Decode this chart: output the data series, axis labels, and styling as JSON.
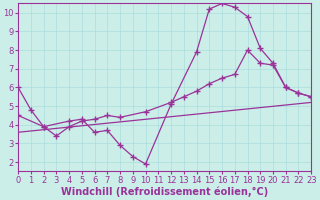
{
  "xlabel": "Windchill (Refroidissement éolien,°C)",
  "bg_color": "#cceee8",
  "line_color": "#993399",
  "grid_color": "#aadddd",
  "xlim": [
    0,
    23
  ],
  "ylim": [
    1.5,
    10.5
  ],
  "xticks": [
    0,
    1,
    2,
    3,
    4,
    5,
    6,
    7,
    8,
    9,
    10,
    11,
    12,
    13,
    14,
    15,
    16,
    17,
    18,
    19,
    20,
    21,
    22,
    23
  ],
  "yticks": [
    2,
    3,
    4,
    5,
    6,
    7,
    8,
    9,
    10
  ],
  "line1_x": [
    0,
    1,
    2,
    4,
    5,
    6,
    7,
    8,
    9,
    10,
    12,
    14,
    15,
    16,
    17,
    18,
    19,
    20,
    21,
    22,
    23
  ],
  "line1_y": [
    6.0,
    4.8,
    3.9,
    4.2,
    4.3,
    3.6,
    3.7,
    2.9,
    2.3,
    1.9,
    5.1,
    7.9,
    10.2,
    10.5,
    10.3,
    9.8,
    8.1,
    7.3,
    6.0,
    5.7,
    5.5
  ],
  "line2_x": [
    0,
    2,
    3,
    4,
    5,
    6,
    7,
    8,
    10,
    12,
    13,
    14,
    15,
    16,
    17,
    18,
    19,
    20,
    21,
    22,
    23
  ],
  "line2_y": [
    4.5,
    3.9,
    3.4,
    3.9,
    4.2,
    4.3,
    4.5,
    4.4,
    4.7,
    5.2,
    5.5,
    5.8,
    6.2,
    6.5,
    6.7,
    8.0,
    7.3,
    7.2,
    6.0,
    5.7,
    5.5
  ],
  "line3_x": [
    0,
    23
  ],
  "line3_y": [
    3.6,
    5.2
  ],
  "marker": "+",
  "marker_size": 4,
  "linewidth": 0.9,
  "font_size": 7,
  "tick_font_size": 6
}
